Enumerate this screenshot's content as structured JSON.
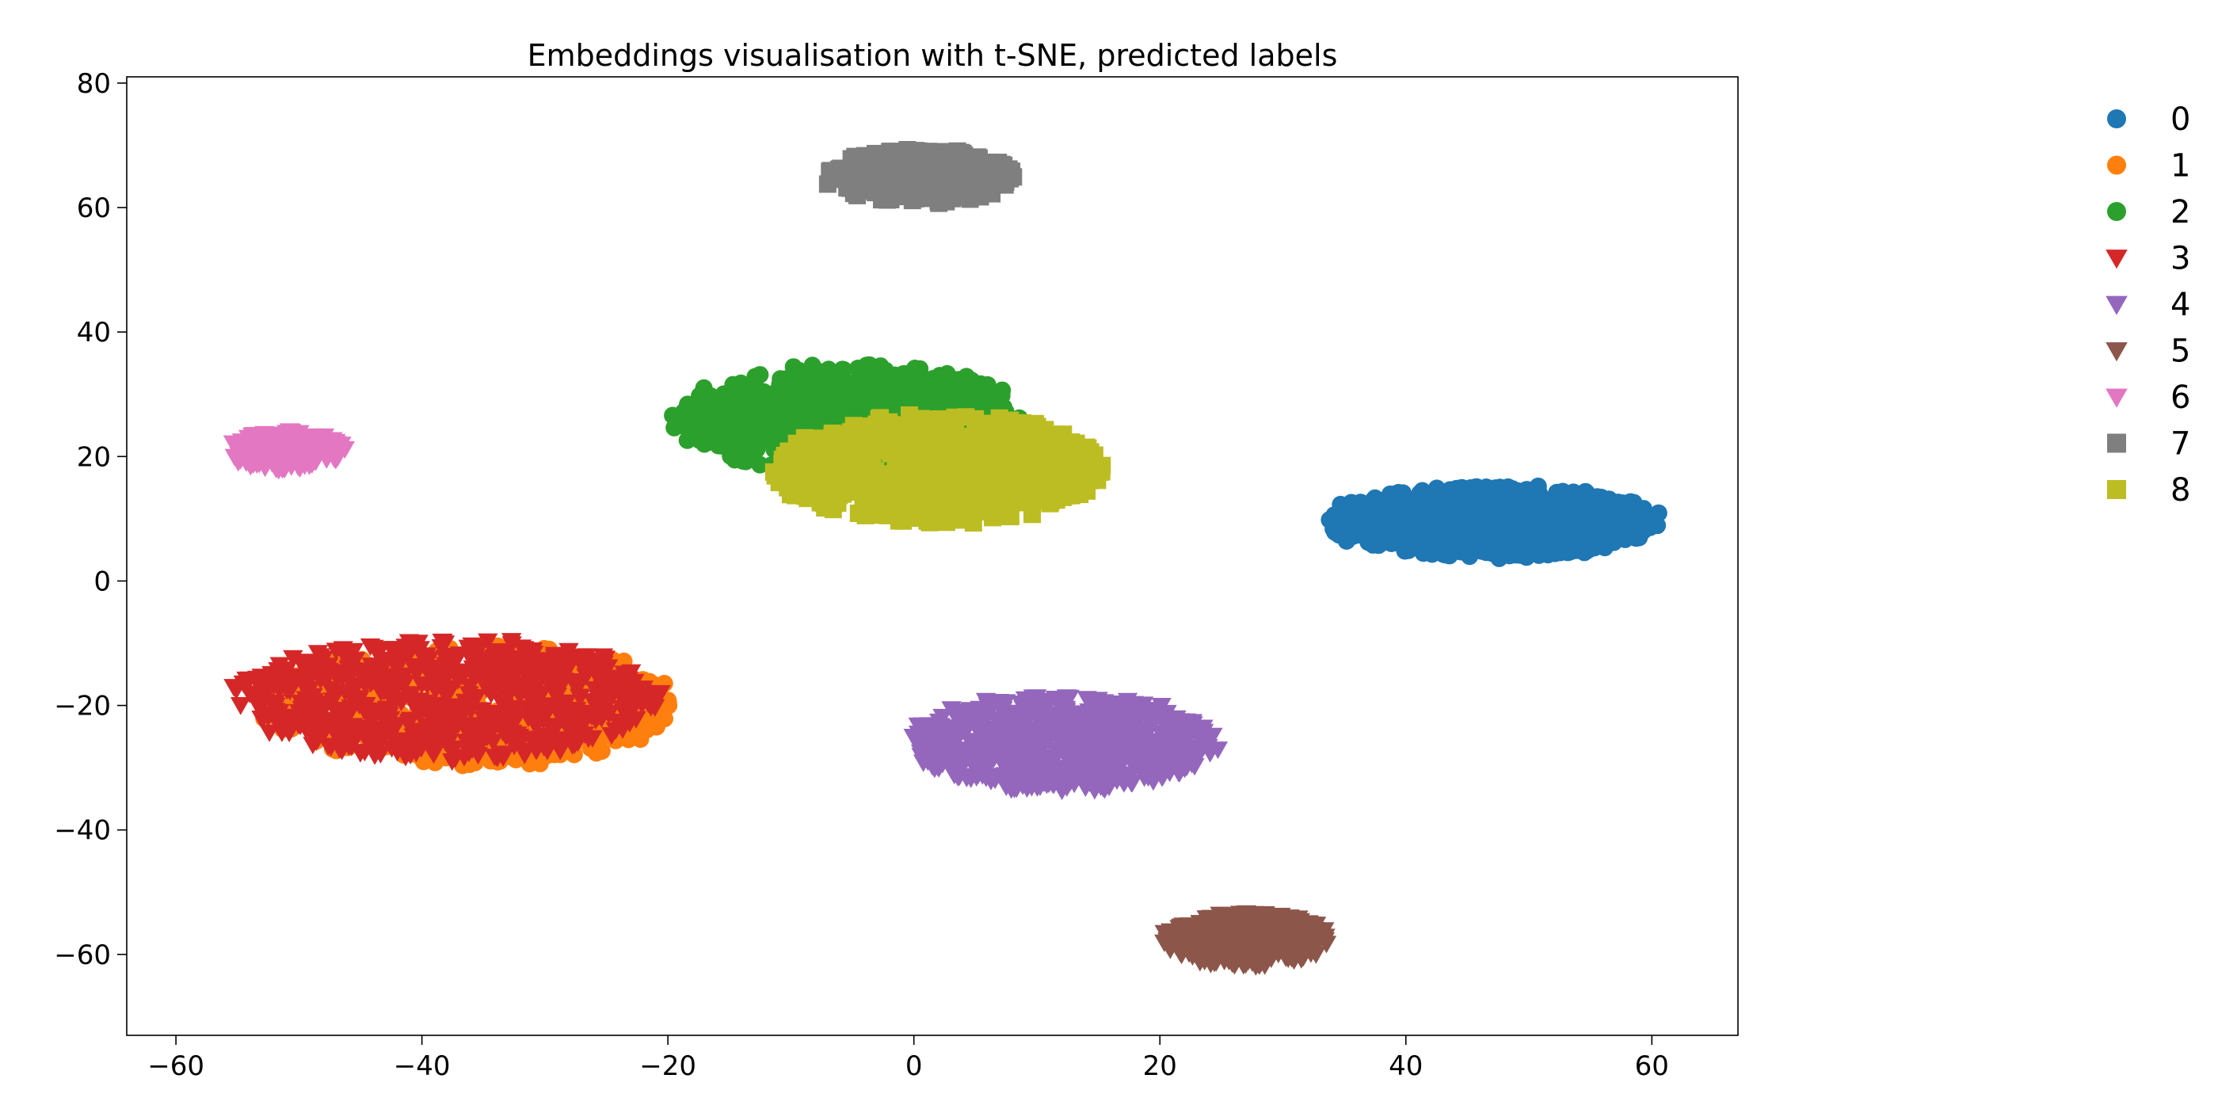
{
  "chart_data": {
    "type": "scatter",
    "title": "Embeddings visualisation with t-SNE, predicted labels",
    "xlabel": "",
    "ylabel": "",
    "xlim": [
      -64,
      67
    ],
    "ylim": [
      -73,
      81
    ],
    "xticks": [
      "−60",
      "−40",
      "−20",
      "0",
      "20",
      "40",
      "60"
    ],
    "xtick_values": [
      -60,
      -40,
      -20,
      0,
      20,
      40,
      60
    ],
    "yticks": [
      "−60",
      "−40",
      "−20",
      "0",
      "20",
      "40",
      "60",
      "80"
    ],
    "ytick_values": [
      -60,
      -40,
      -20,
      0,
      20,
      40,
      60,
      80
    ],
    "grid": false,
    "legend_position": "right, outside plot",
    "series": [
      {
        "name": "0",
        "marker": "circle",
        "color": "#1f77b4",
        "center": [
          47,
          9.5
        ],
        "spread": [
          14,
          6
        ],
        "count": 900
      },
      {
        "name": "1",
        "marker": "circle",
        "color": "#ff7f0e",
        "center": [
          -36,
          -20
        ],
        "spread": [
          18,
          10
        ],
        "count": 500
      },
      {
        "name": "2",
        "marker": "circle",
        "color": "#2ca02c",
        "center": [
          -5,
          26
        ],
        "spread": [
          15,
          9
        ],
        "count": 700
      },
      {
        "name": "3",
        "marker": "triangle-down",
        "color": "#d62728",
        "center": [
          -38,
          -19
        ],
        "spread": [
          18,
          10
        ],
        "count": 700
      },
      {
        "name": "4",
        "marker": "triangle-down",
        "color": "#9467bd",
        "center": [
          12,
          -26
        ],
        "spread": [
          13,
          8
        ],
        "count": 700
      },
      {
        "name": "5",
        "marker": "triangle-down",
        "color": "#8c564b",
        "center": [
          27,
          -57.5
        ],
        "spread": [
          7,
          4.5
        ],
        "count": 300
      },
      {
        "name": "6",
        "marker": "triangle-down",
        "color": "#e377c2",
        "center": [
          -51,
          21
        ],
        "spread": [
          5,
          3.2
        ],
        "count": 200
      },
      {
        "name": "7",
        "marker": "square",
        "color": "#7f7f7f",
        "center": [
          0.5,
          65
        ],
        "spread": [
          8,
          4.5
        ],
        "count": 300
      },
      {
        "name": "8",
        "marker": "square",
        "color": "#bcbd22",
        "center": [
          2,
          18
        ],
        "spread": [
          14,
          9
        ],
        "count": 700
      }
    ]
  }
}
